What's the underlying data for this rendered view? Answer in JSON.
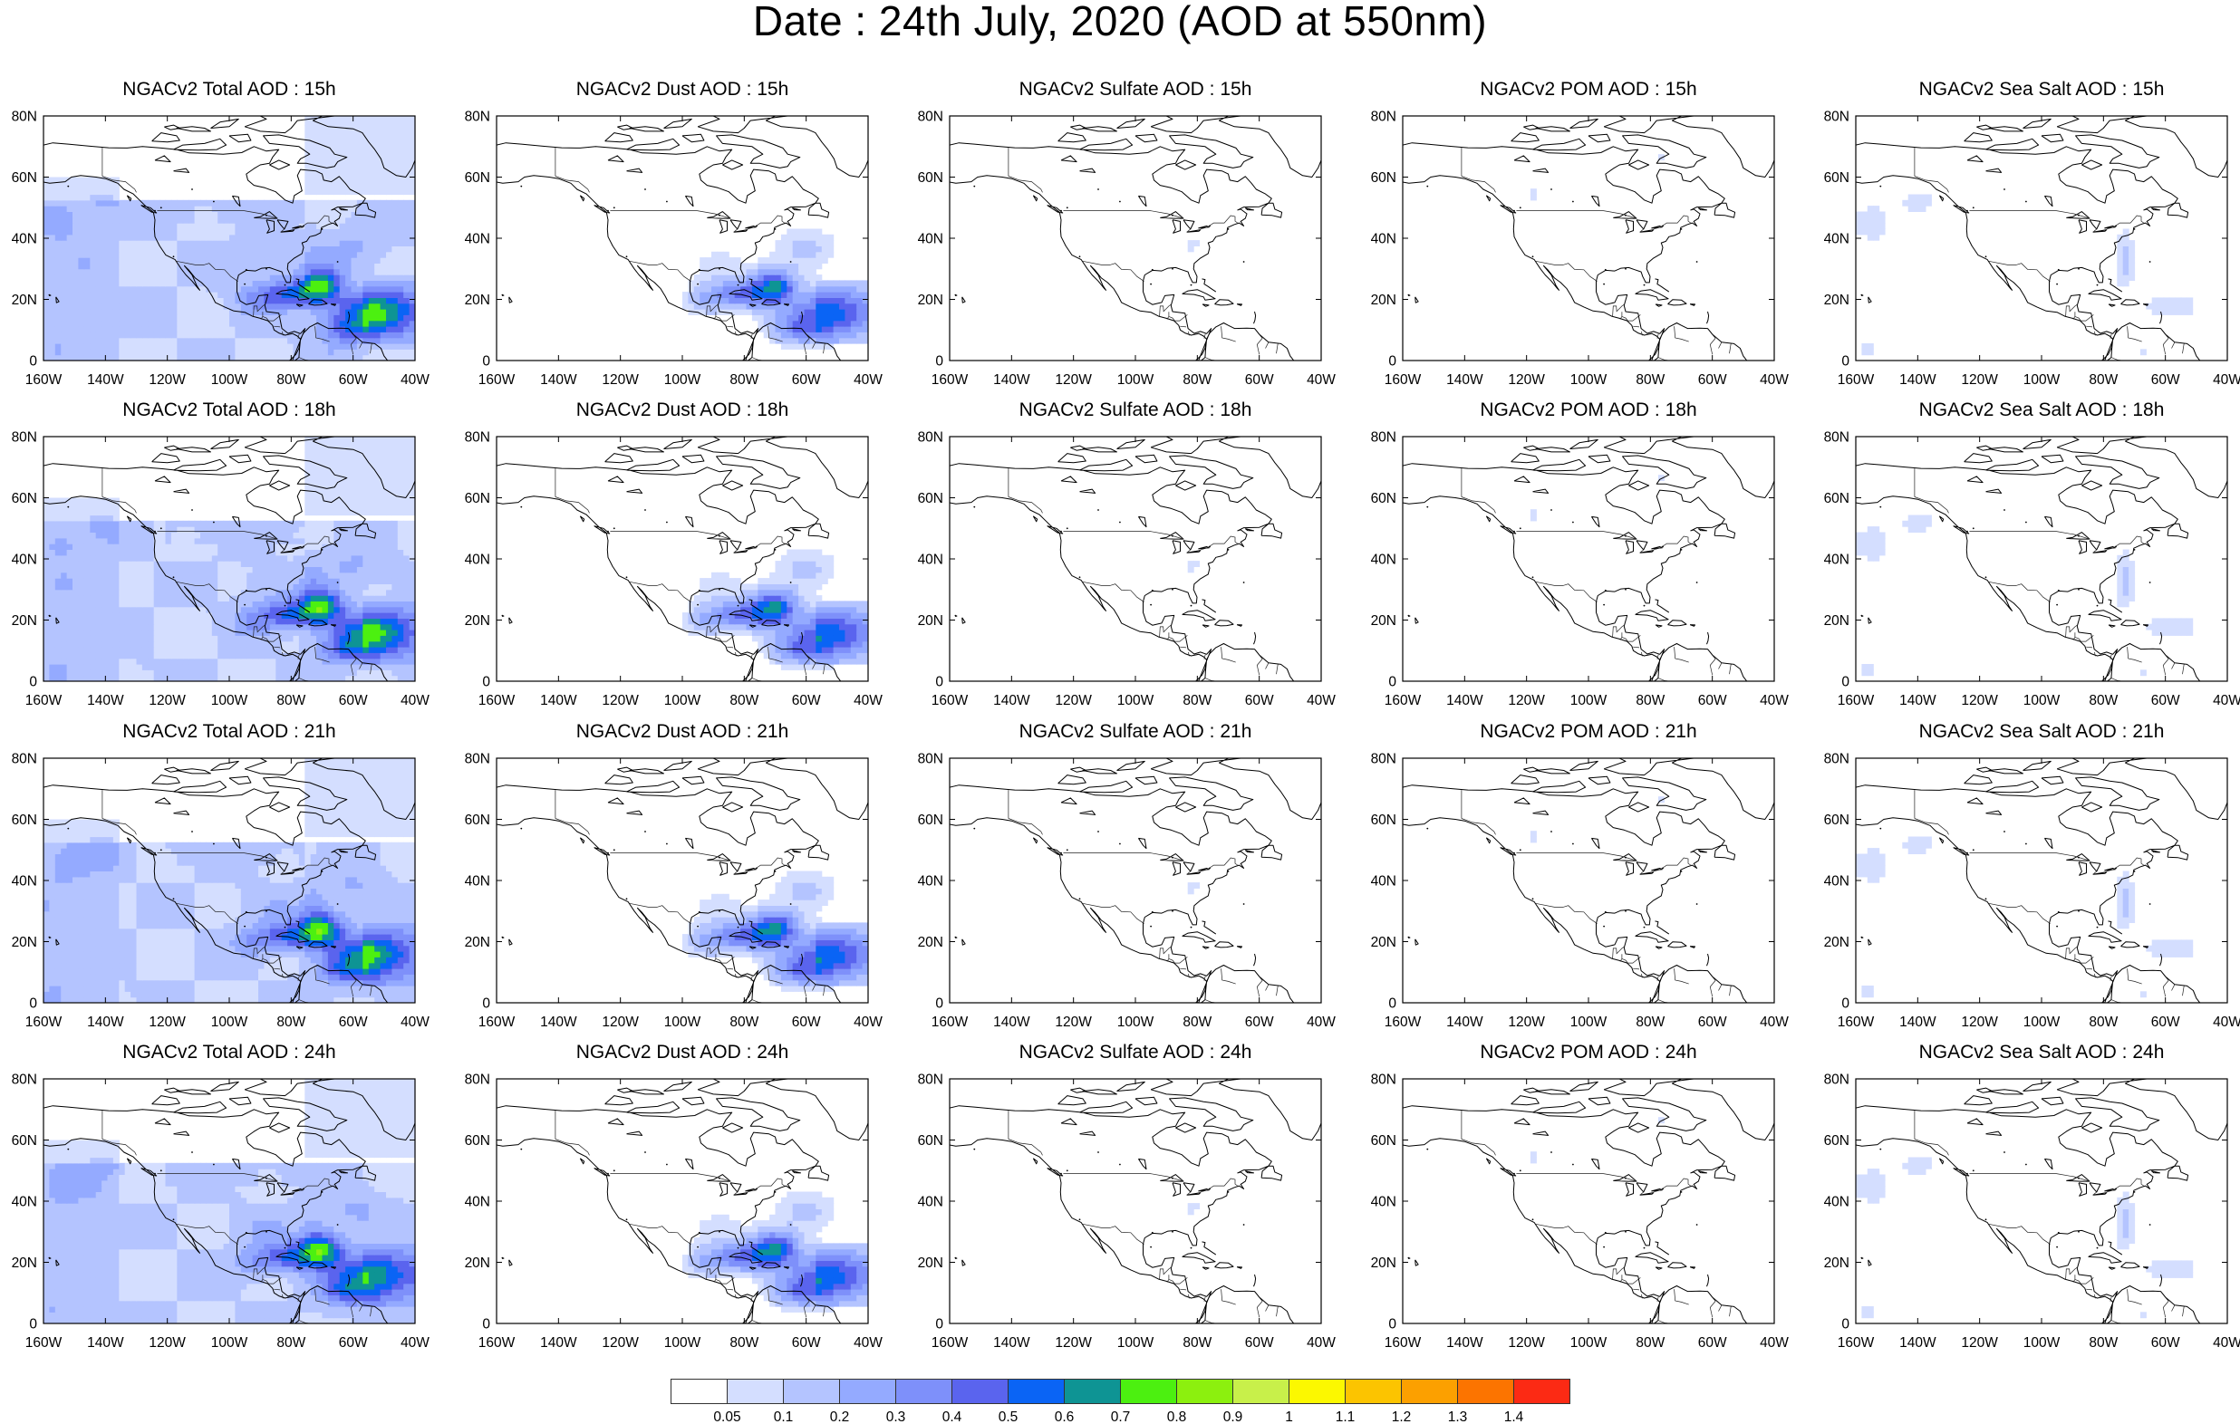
{
  "title": "Date : 24th July, 2020 (AOD at 550nm)",
  "panel_titles": [
    [
      "NGACv2 Total AOD : 15h",
      "NGACv2 Dust AOD : 15h",
      "NGACv2 Sulfate AOD : 15h",
      "NGACv2 POM AOD : 15h",
      "NGACv2 Sea Salt AOD : 15h"
    ],
    [
      "NGACv2 Total AOD : 18h",
      "NGACv2 Dust AOD : 18h",
      "NGACv2 Sulfate AOD : 18h",
      "NGACv2 POM AOD : 18h",
      "NGACv2 Sea Salt AOD : 18h"
    ],
    [
      "NGACv2 Total AOD : 21h",
      "NGACv2 Dust AOD : 21h",
      "NGACv2 Sulfate AOD : 21h",
      "NGACv2 POM AOD : 21h",
      "NGACv2 Sea Salt AOD : 21h"
    ],
    [
      "NGACv2 Total AOD : 24h",
      "NGACv2 Dust AOD : 24h",
      "NGACv2 Sulfate AOD : 24h",
      "NGACv2 POM AOD : 24h",
      "NGACv2 Sea Salt  AOD : 24h"
    ]
  ],
  "fields": [
    "total",
    "dust",
    "sulfate",
    "pom",
    "seasalt"
  ],
  "lat_labels": [
    "0",
    "20N",
    "40N",
    "60N",
    "80N"
  ],
  "lon_labels": [
    "160W",
    "140W",
    "120W",
    "100W",
    "80W",
    "60W",
    "40W"
  ],
  "colorbar": {
    "labels": [
      "0.05",
      "0.1",
      "0.2",
      "0.3",
      "0.4",
      "0.5",
      "0.6",
      "0.7",
      "0.8",
      "0.9",
      "1",
      "1.1",
      "1.2",
      "1.3",
      "1.4"
    ],
    "colors": [
      "#ffffff",
      "#d4deff",
      "#b4c4ff",
      "#94aaff",
      "#7e90fa",
      "#5a64ee",
      "#0a64f5",
      "#0e9494",
      "#4cf010",
      "#8cf00e",
      "#c8f04a",
      "#fcf800",
      "#fcc400",
      "#fca000",
      "#fc7400",
      "#fc2a14"
    ]
  }
}
